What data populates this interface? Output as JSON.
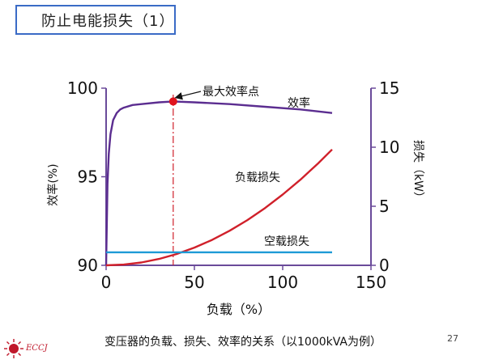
{
  "slide": {
    "title": "防止电能损失（1）",
    "caption": "变压器的负载、损失、效率的关系（以1000kVA为例）",
    "page_number": "27",
    "logo_text": "ECCJ"
  },
  "chart_data": {
    "type": "line",
    "xlabel": "负载（%）",
    "ylabel_left": "效率(%)",
    "ylabel_right": "损失（kW）",
    "xlim": [
      0,
      150
    ],
    "ylim_left": [
      90,
      100
    ],
    "ylim_right": [
      0,
      15
    ],
    "x_ticks": [
      "0",
      "50",
      "100",
      "150"
    ],
    "y_left_ticks": [
      "90",
      "95",
      "100"
    ],
    "y_right_ticks": [
      "0",
      "5",
      "10",
      "15"
    ],
    "series": [
      {
        "name": "效率",
        "axis": "left",
        "color": "#5b2d90",
        "x": [
          0,
          0.8,
          1.5,
          2.5,
          4,
          6,
          8,
          10,
          15,
          20,
          30,
          38,
          50,
          70,
          90,
          110,
          128
        ],
        "y": [
          90,
          94.6,
          96.3,
          97.4,
          98.2,
          98.6,
          98.8,
          98.9,
          99.05,
          99.1,
          99.2,
          99.25,
          99.2,
          99.1,
          98.95,
          98.8,
          98.6
        ]
      },
      {
        "name": "负载损失",
        "axis": "right",
        "color": "#d0202a",
        "x": [
          0,
          10,
          20,
          30,
          40,
          50,
          60,
          70,
          80,
          90,
          100,
          110,
          120,
          128
        ],
        "y": [
          0,
          0.06,
          0.24,
          0.54,
          0.96,
          1.5,
          2.15,
          2.93,
          3.83,
          4.85,
          5.99,
          7.25,
          8.62,
          9.81
        ]
      },
      {
        "name": "空载损失",
        "axis": "right",
        "color": "#1e9ad6",
        "x": [
          0,
          128
        ],
        "y": [
          1.1,
          1.1
        ]
      }
    ],
    "annotations": [
      {
        "text": "最大效率点",
        "x": 38,
        "y": 99.25,
        "axis": "left"
      }
    ],
    "max_efficiency_line_x": 38
  }
}
